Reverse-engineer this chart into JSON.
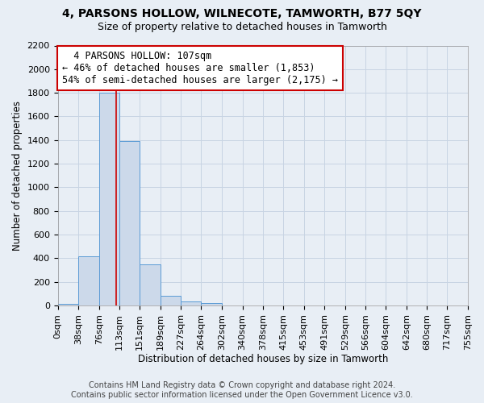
{
  "title": "4, PARSONS HOLLOW, WILNECOTE, TAMWORTH, B77 5QY",
  "subtitle": "Size of property relative to detached houses in Tamworth",
  "xlabel": "Distribution of detached houses by size in Tamworth",
  "ylabel": "Number of detached properties",
  "footer_line1": "Contains HM Land Registry data © Crown copyright and database right 2024.",
  "footer_line2": "Contains public sector information licensed under the Open Government Licence v3.0.",
  "bin_edges": [
    0,
    38,
    76,
    113,
    151,
    189,
    227,
    264,
    302,
    340,
    378,
    415,
    453,
    491,
    529,
    566,
    604,
    642,
    680,
    717,
    755
  ],
  "bar_heights": [
    15,
    420,
    1800,
    1390,
    350,
    80,
    32,
    18,
    0,
    0,
    0,
    0,
    0,
    0,
    0,
    0,
    0,
    0,
    0,
    0
  ],
  "bar_color": "#ccd9ea",
  "bar_edge_color": "#5b9bd5",
  "grid_color": "#c8d4e3",
  "background_color": "#e8eef5",
  "property_size": 107,
  "vline_color": "#cc0000",
  "annotation_line1": "  4 PARSONS HOLLOW: 107sqm",
  "annotation_line2": "← 46% of detached houses are smaller (1,853)",
  "annotation_line3": "54% of semi-detached houses are larger (2,175) →",
  "annotation_box_color": "#ffffff",
  "annotation_border_color": "#cc0000",
  "ylim": [
    0,
    2200
  ],
  "yticks": [
    0,
    200,
    400,
    600,
    800,
    1000,
    1200,
    1400,
    1600,
    1800,
    2000,
    2200
  ],
  "title_fontsize": 10,
  "subtitle_fontsize": 9,
  "axis_label_fontsize": 8.5,
  "tick_fontsize": 8,
  "annotation_fontsize": 8.5,
  "footer_fontsize": 7
}
